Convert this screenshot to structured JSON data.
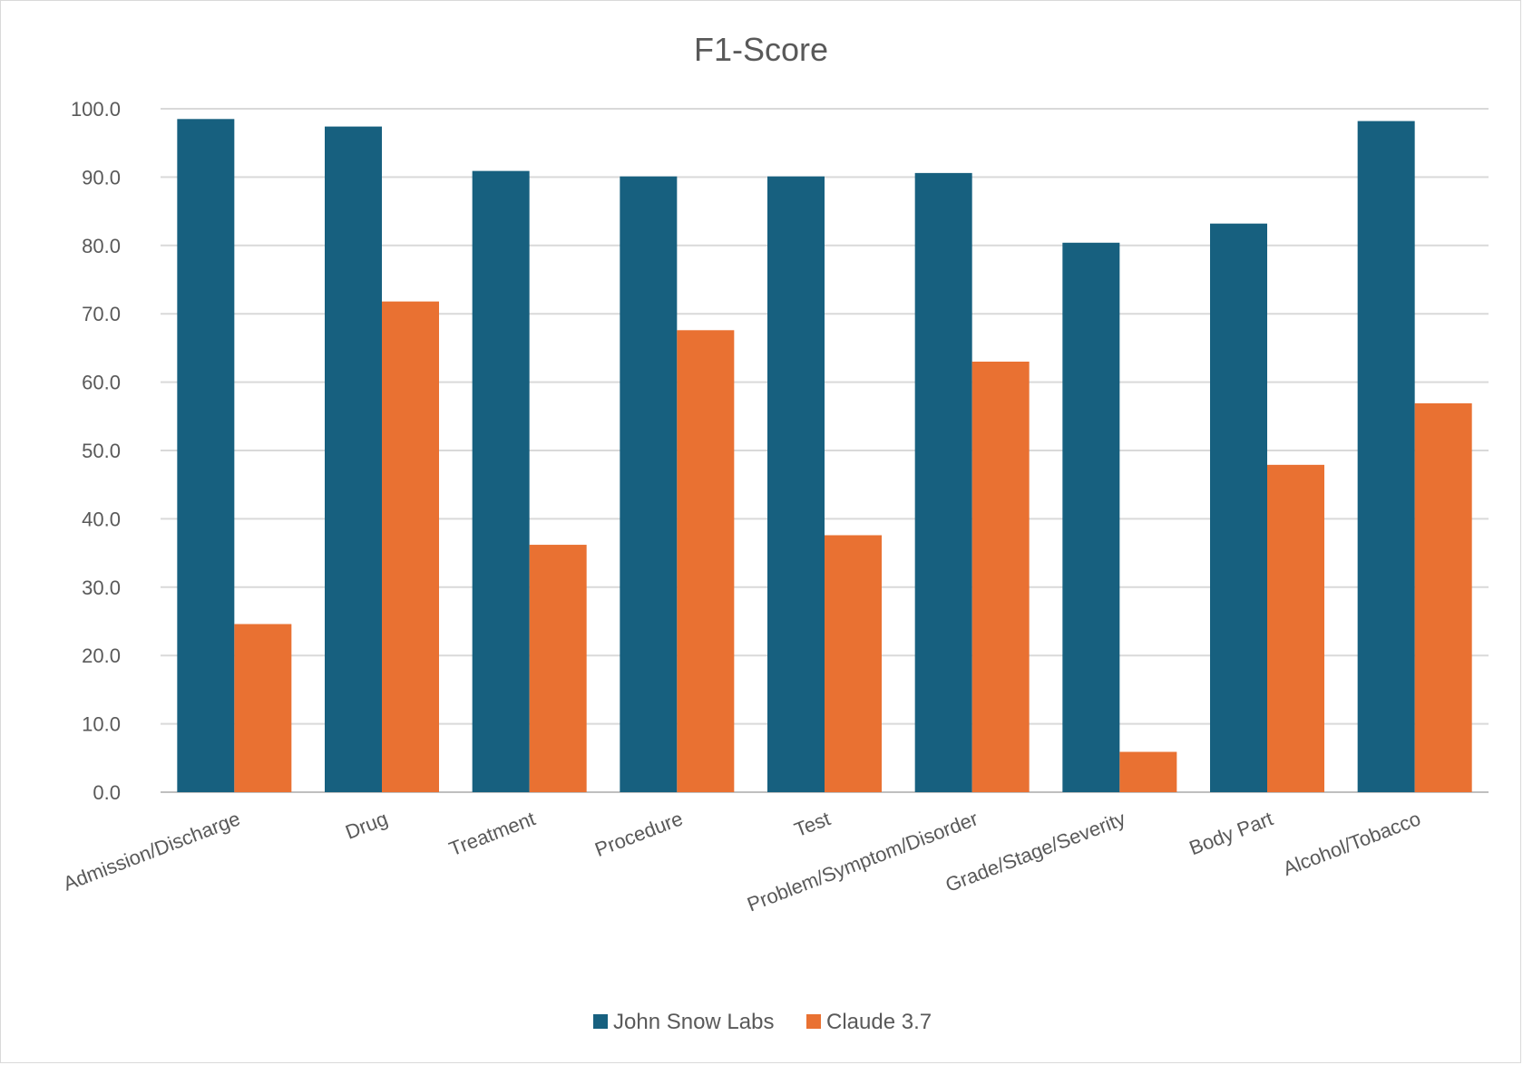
{
  "chart_data": {
    "type": "bar",
    "title": "F1-Score",
    "xlabel": "",
    "ylabel": "",
    "ylim": [
      0,
      100
    ],
    "yticks": [
      "0.0",
      "10.0",
      "20.0",
      "30.0",
      "40.0",
      "50.0",
      "60.0",
      "70.0",
      "80.0",
      "90.0",
      "100.0"
    ],
    "grid": true,
    "legend_position": "bottom",
    "categories": [
      "Admission/Discharge",
      "Drug",
      "Treatment",
      "Procedure",
      "Test",
      "Problem/Symptom/Disorder",
      "Grade/Stage/Severity",
      "Body Part",
      "Alcohol/Tobacco"
    ],
    "series": [
      {
        "name": "John Snow Labs",
        "color": "#17607f",
        "values": [
          98.5,
          97.4,
          90.9,
          90.1,
          90.1,
          90.6,
          80.4,
          83.2,
          98.2
        ]
      },
      {
        "name": "Claude 3.7",
        "color": "#e97132",
        "values": [
          24.6,
          71.8,
          36.2,
          67.6,
          37.6,
          63.0,
          5.9,
          47.9,
          56.9
        ]
      }
    ]
  }
}
